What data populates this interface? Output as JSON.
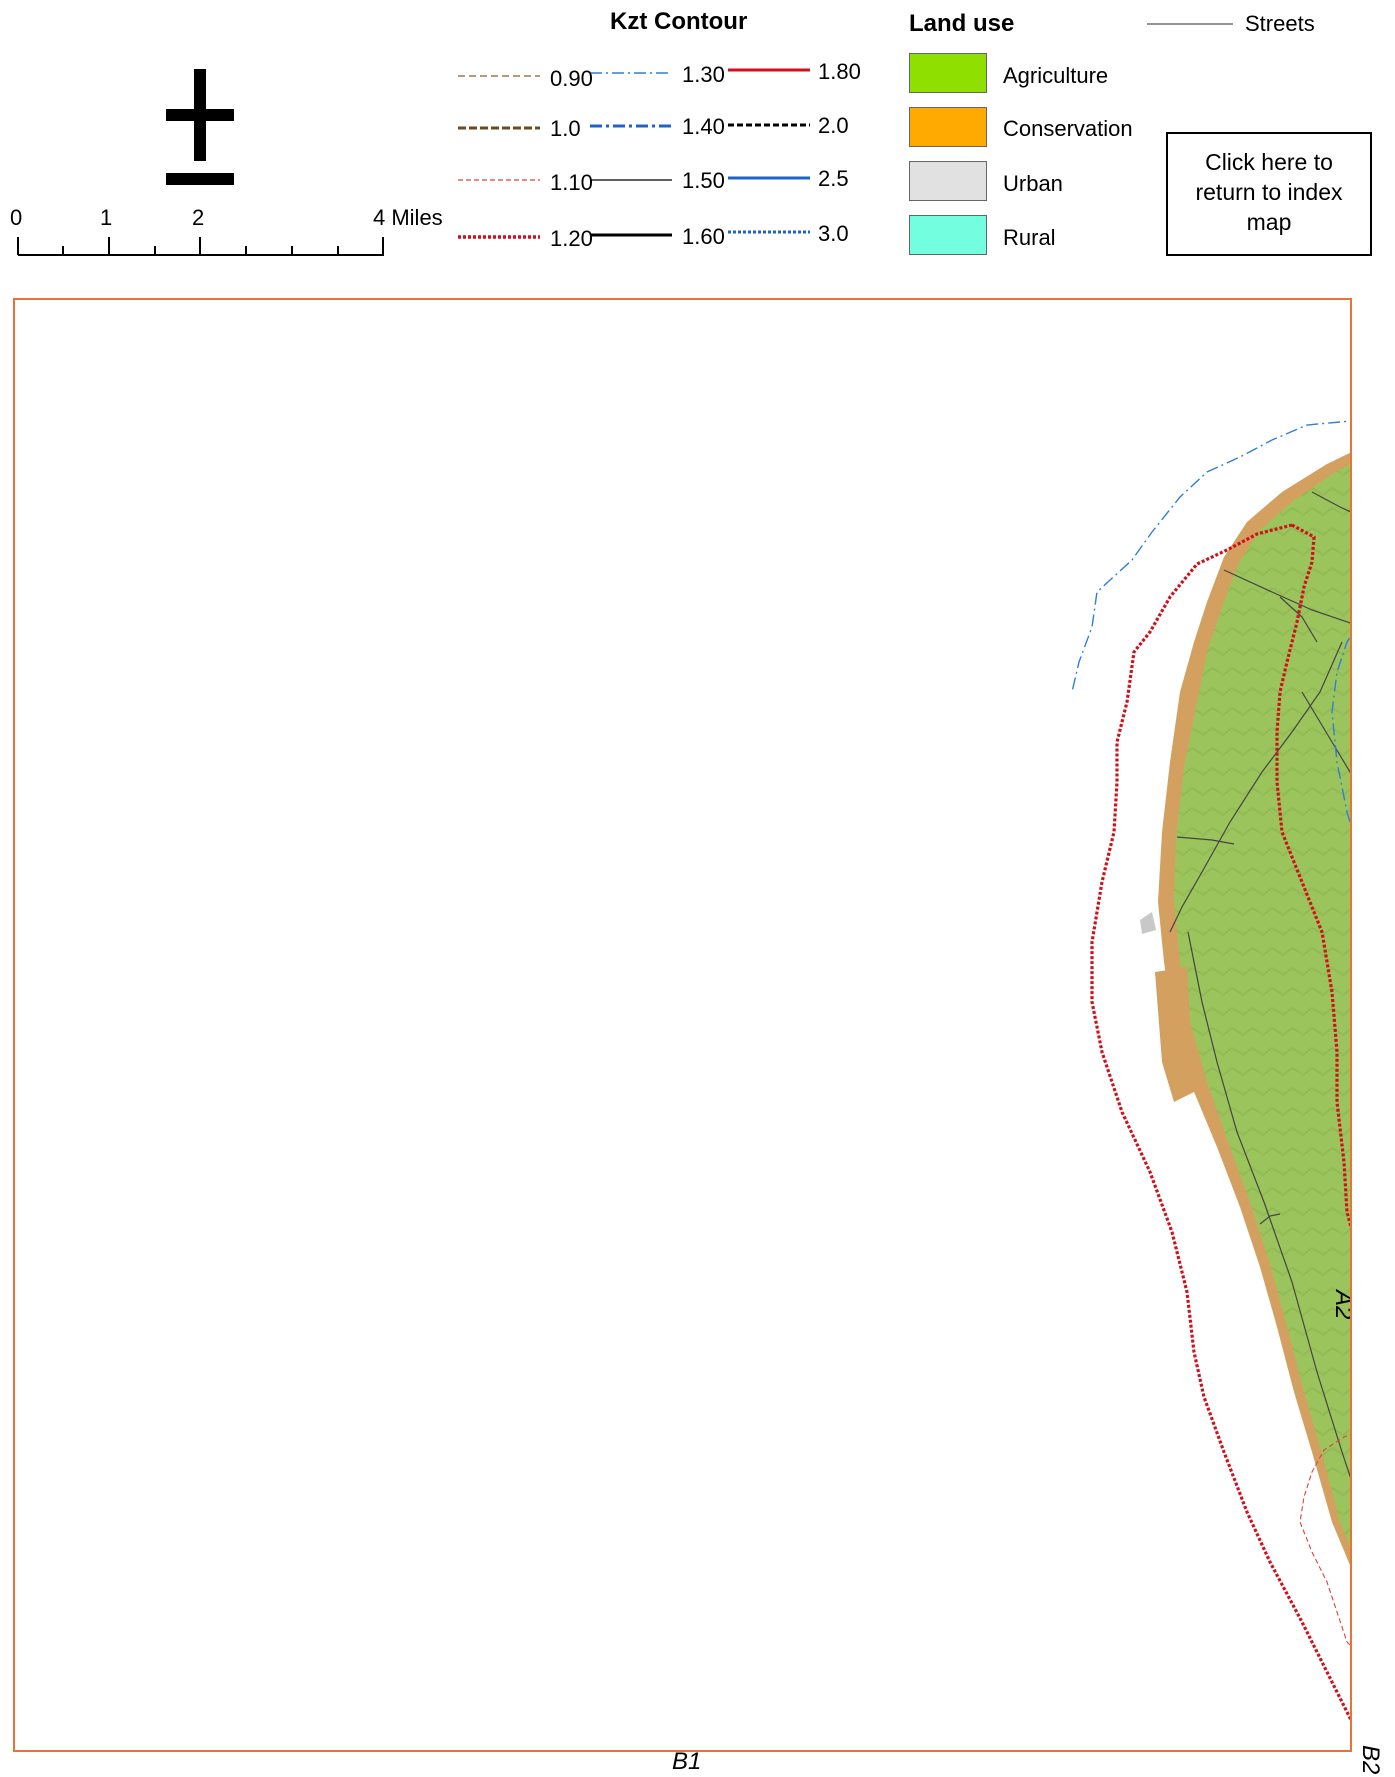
{
  "north_arrow": {
    "icon": "north-arrow-icon"
  },
  "scale_bar": {
    "ticks": [
      "0",
      "1",
      "2",
      "4 Miles"
    ],
    "unit": "Miles"
  },
  "kzt_legend": {
    "title": "Kzt Contour",
    "items": [
      {
        "label": "0.90",
        "color": "#a0764a",
        "style": "dashed"
      },
      {
        "label": "1.0",
        "color": "#6b4a1e",
        "style": "dashed-heavy"
      },
      {
        "label": "1.10",
        "color": "#e0403a",
        "style": "dashed"
      },
      {
        "label": "1.20",
        "color": "#d0101a",
        "style": "dotted-heavy"
      },
      {
        "label": "1.30",
        "color": "#2f7fd6",
        "style": "dash-dot"
      },
      {
        "label": "1.40",
        "color": "#1e64c8",
        "style": "dash-dot-heavy"
      },
      {
        "label": "1.50",
        "color": "#000000",
        "style": "solid"
      },
      {
        "label": "1.60",
        "color": "#000000",
        "style": "solid-heavy"
      },
      {
        "label": "1.80",
        "color": "#d0101a",
        "style": "solid-heavy"
      },
      {
        "label": "2.0",
        "color": "#000000",
        "style": "dashed-heavy"
      },
      {
        "label": "2.5",
        "color": "#1e64c8",
        "style": "solid-heavy"
      },
      {
        "label": "3.0",
        "color": "#1e64c8",
        "style": "dotted-heavy"
      }
    ]
  },
  "land_use_legend": {
    "title": "Land use",
    "items": [
      {
        "label": "Agriculture",
        "color": "#8fe000"
      },
      {
        "label": "Conservation",
        "color": "#ffaa00"
      },
      {
        "label": "Urban",
        "color": "#e1e1e1"
      },
      {
        "label": "Rural",
        "color": "#73ffdf"
      }
    ]
  },
  "streets_legend": {
    "label": "Streets",
    "color": "#555555"
  },
  "index_link": {
    "lines": [
      "Click here to",
      "return to index",
      "map"
    ]
  },
  "map": {
    "border_color": "#e8733a",
    "land_color": "#9cc45c",
    "conservation_color": "#d4a060",
    "adjacent_labels": {
      "right": "A2",
      "bottom": "B1",
      "corner": "B2"
    }
  }
}
